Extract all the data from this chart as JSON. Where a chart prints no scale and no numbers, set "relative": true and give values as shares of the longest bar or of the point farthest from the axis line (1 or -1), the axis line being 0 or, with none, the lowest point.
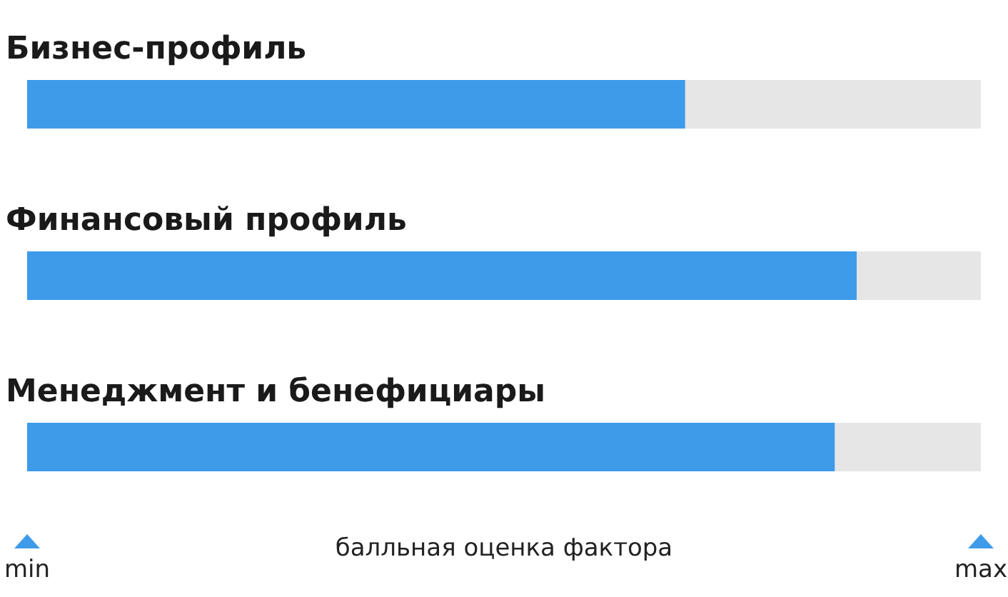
{
  "chart_data": {
    "type": "bar",
    "orientation": "horizontal",
    "relative": true,
    "stacked": true,
    "categories": [
      "Бизнес-профиль",
      "Финансовый профиль",
      "Менеджмент и бенефициары"
    ],
    "series": [
      {
        "color": "#3d9be9",
        "values": [
          0.69,
          0.87,
          0.847
        ]
      },
      {
        "color": "#e6e6e6",
        "values": [
          0.31,
          0.13,
          0.153
        ]
      }
    ],
    "xlabel": "балльная оценка фактора",
    "annotations": [
      "min",
      "max"
    ]
  }
}
